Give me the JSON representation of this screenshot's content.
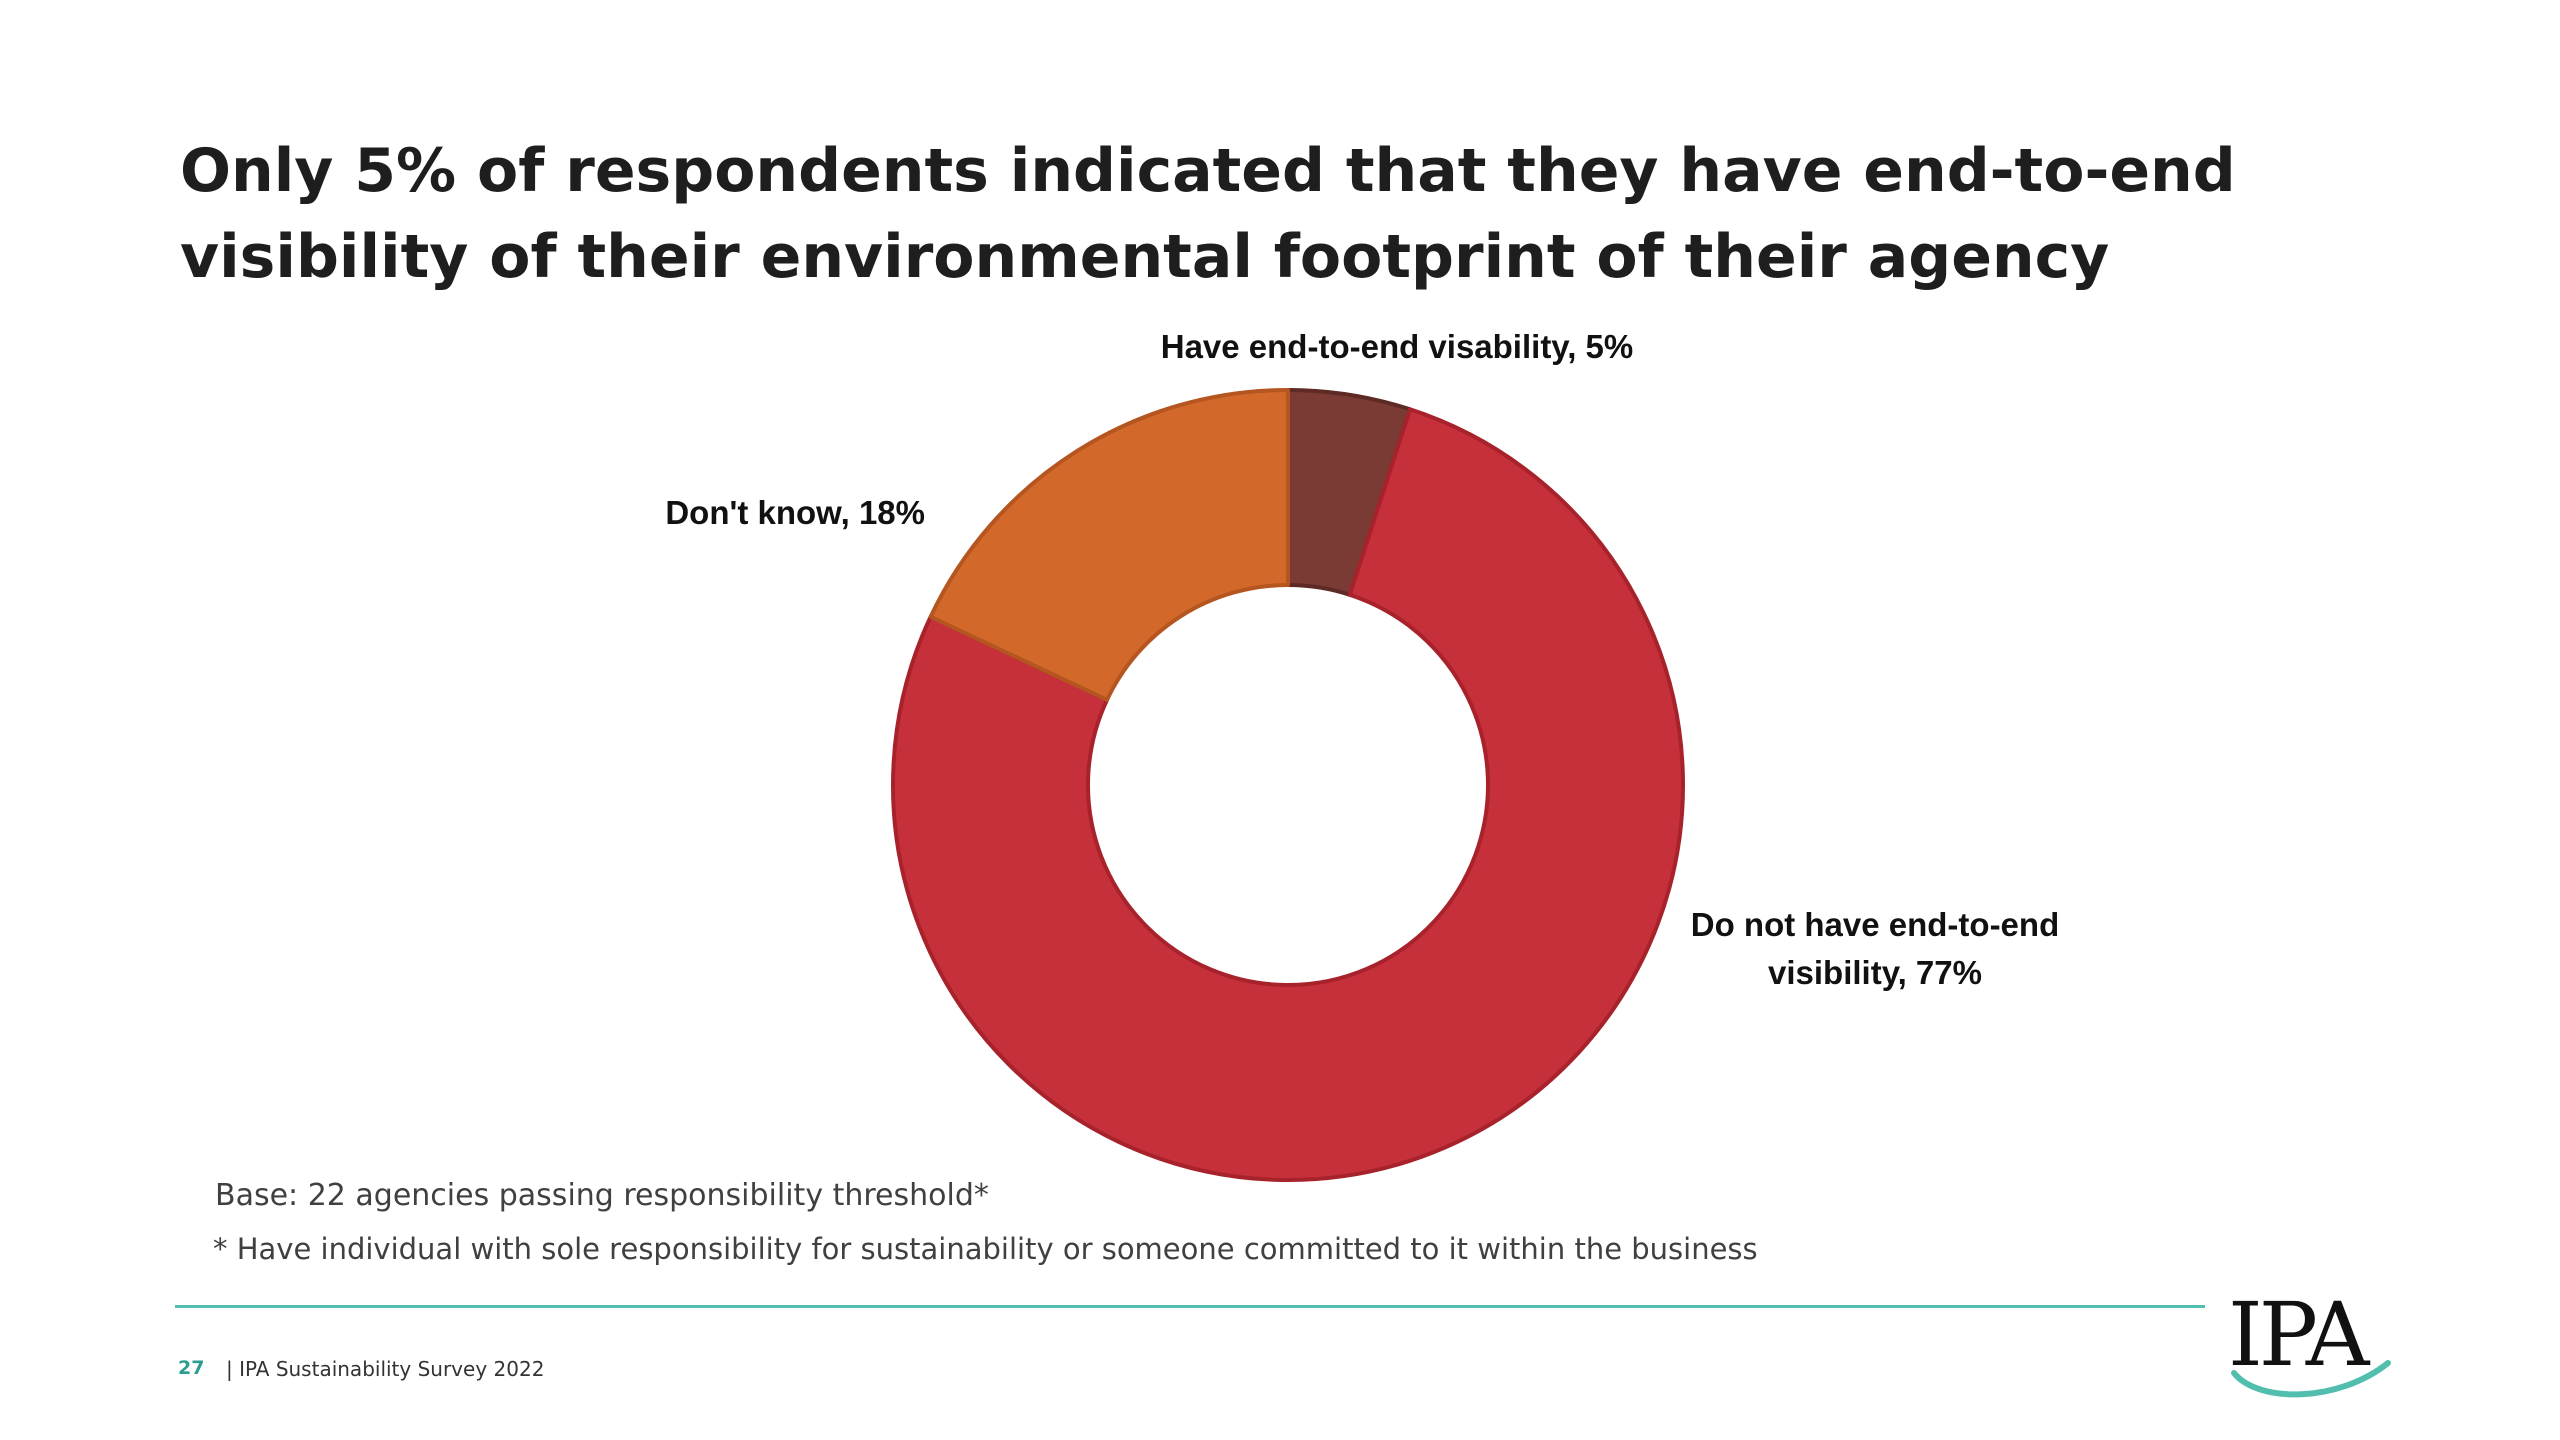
{
  "title": "Only 5% of respondents indicated that they have end-to-end visibility of their environmental footprint of their agency",
  "chart_data": {
    "type": "pie",
    "subtype": "donut",
    "title": "",
    "slices": [
      {
        "label": "Have end-to-end visability, 5%",
        "value": 5,
        "color": "#7a3b34"
      },
      {
        "label": "Do not have end-to-end visibility, 77%",
        "value": 77,
        "color": "#c6303a"
      },
      {
        "label": "Don't know, 18%",
        "value": 18,
        "color": "#d2692a"
      }
    ],
    "start_angle_deg": 0,
    "direction": "clockwise",
    "edge_colors": [
      "#5e2a25",
      "#a8222c",
      "#b55520"
    ]
  },
  "base_note": "Base: 22 agencies passing responsibility threshold*",
  "footnote": "* Have individual with sole responsibility for sustainability or someone committed to it within the business",
  "footer": {
    "page_number": "27",
    "text": "| IPA Sustainability Survey 2022"
  },
  "logo": {
    "text": "IPA",
    "accent_color": "#52bfae"
  }
}
